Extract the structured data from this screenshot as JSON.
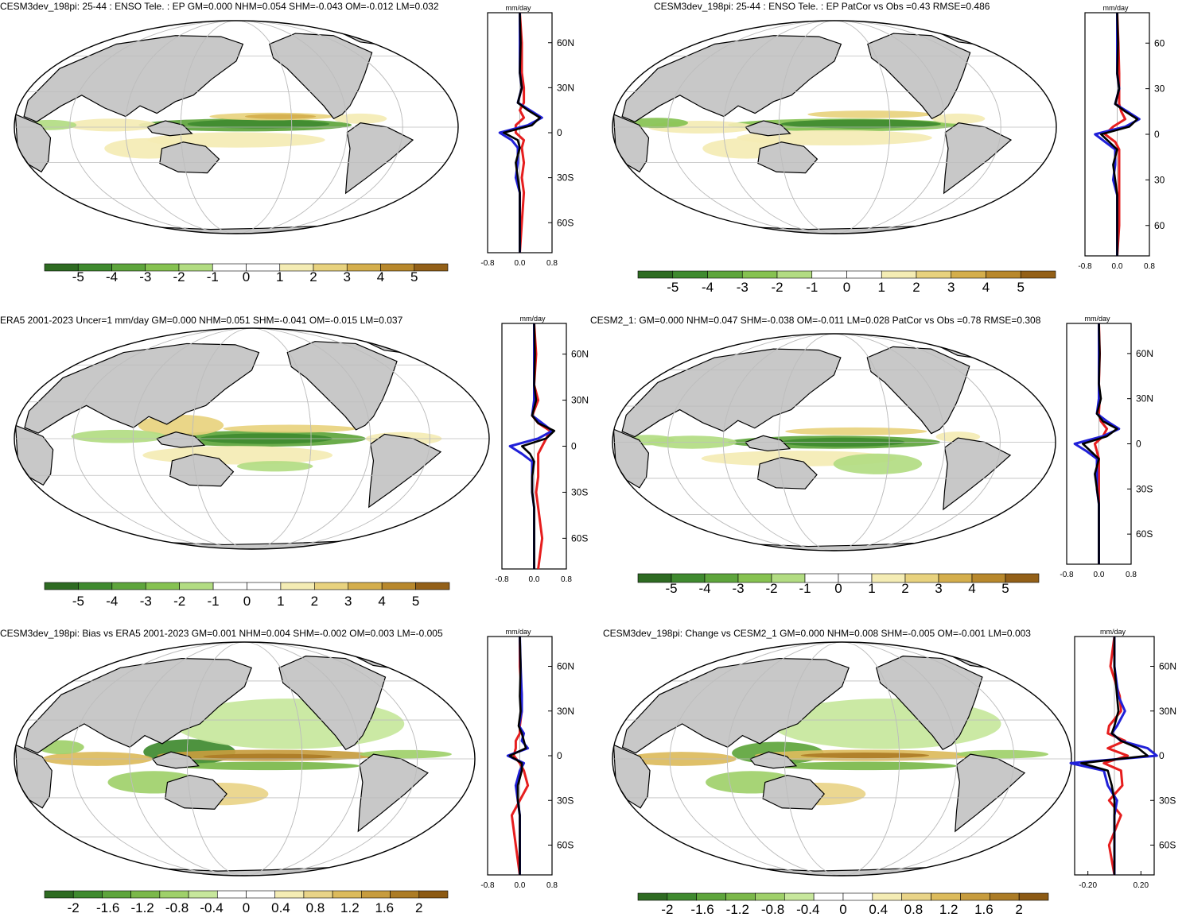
{
  "figure": {
    "colors": {
      "land": "#c8c8c8",
      "ocean": "#ffffff",
      "grid": "#bdbdbd",
      "profile_model": "#000000",
      "profile_obs": "#2020d8",
      "profile_alt": "#e61e1e"
    },
    "palette11": [
      "#2e6b22",
      "#3f8a2f",
      "#5ea53c",
      "#86c251",
      "#b2dc82",
      "#ffffff",
      "#f4ecb4",
      "#e8d27e",
      "#d4ae4c",
      "#b8882c",
      "#936018"
    ],
    "palette13": [
      "#2e6b22",
      "#3f8a2f",
      "#5ea53c",
      "#7bb84a",
      "#9fd06a",
      "#c7e79c",
      "#ffffff",
      "#f4ecb4",
      "#e9d488",
      "#dcbb5c",
      "#c79c3e",
      "#ac7c26",
      "#8c5a14"
    ]
  },
  "panels": [
    {
      "title": "CESM3dev_198pi: 25-44 : ENSO Tele. : EP GM=0.000 NHM=0.054 SHM=-0.043 OM=-0.012 LM=0.032",
      "units": "mm/day",
      "lat_ticks": [
        "60N",
        "30N",
        "0",
        "30S",
        "60S"
      ],
      "x_ticks": [
        "-0.8",
        "0.0",
        "0.8"
      ],
      "cbar_labels": [
        "-5",
        "-4",
        "-3",
        "-2",
        "-1",
        "0",
        "1",
        "2",
        "3",
        "4",
        "5"
      ]
    },
    {
      "title": "CESM3dev_198pi: 25-44 : ENSO Tele. : EP PatCor vs Obs =0.43 RMSE=0.486",
      "units": "mm/day",
      "lat_ticks": [
        "60",
        "30",
        "0",
        "30",
        "60"
      ],
      "x_ticks": [
        "-0.8",
        "0.0",
        "0.8"
      ],
      "cbar_labels": [
        "-5",
        "-4",
        "-3",
        "-2",
        "-1",
        "0",
        "1",
        "2",
        "3",
        "4",
        "5"
      ]
    },
    {
      "title": "ERA5 2001-2023 Uncer=1 mm/day GM=0.000 NHM=0.051 SHM=-0.041 OM=-0.015 LM=0.037",
      "units": "mm/day",
      "lat_ticks": [
        "60N",
        "30N",
        "0",
        "30S",
        "60S"
      ],
      "x_ticks": [
        "-0.8",
        "0.0",
        "0.8"
      ],
      "cbar_labels": [
        "-5",
        "-4",
        "-3",
        "-2",
        "-1",
        "0",
        "1",
        "2",
        "3",
        "4",
        "5"
      ]
    },
    {
      "title": "CESM2_1: GM=0.000 NHM=0.047 SHM=-0.038 OM=-0.011 LM=0.028 PatCor vs Obs =0.78 RMSE=0.308",
      "units": "mm/day",
      "lat_ticks": [
        "60N",
        "30N",
        "0",
        "30S",
        "60S"
      ],
      "x_ticks": [
        "-0.8",
        "0.0",
        "0.8"
      ],
      "cbar_labels": [
        "-5",
        "-4",
        "-3",
        "-2",
        "-1",
        "0",
        "1",
        "2",
        "3",
        "4",
        "5"
      ]
    },
    {
      "title": "CESM3dev_198pi: Bias vs ERA5 2001-2023 GM=0.001 NHM=0.004 SHM=-0.002 OM=0.003 LM=-0.005",
      "units": "mm/day",
      "lat_ticks": [
        "60N",
        "30N",
        "0",
        "30S",
        "60S"
      ],
      "x_ticks": [
        "-0.8",
        "0.0",
        "0.8"
      ],
      "cbar_labels": [
        "-2",
        "-1.6",
        "-1.2",
        "-0.8",
        "-0.4",
        "0",
        "0.4",
        "0.8",
        "1.2",
        "1.6",
        "2"
      ]
    },
    {
      "title": "CESM3dev_198pi: Change vs CESM2_1 GM=0.000 NHM=0.008 SHM=-0.005 OM=-0.001 LM=0.003",
      "units": "mm/day",
      "lat_ticks": [
        "60N",
        "30N",
        "0",
        "30S",
        "60S"
      ],
      "x_ticks": [
        "-0.20",
        "0.20"
      ],
      "cbar_labels": [
        "-2",
        "-1.6",
        "-1.2",
        "-0.8",
        "-0.4",
        "0",
        "0.4",
        "0.8",
        "1.2",
        "1.6",
        "2"
      ]
    }
  ],
  "chart_data": [
    {
      "type": "heatmap",
      "title": "CESM3dev_198pi: 25-44 : ENSO Tele. : EP GM=0.000 NHM=0.054 SHM=-0.043 OM=-0.012 LM=0.032",
      "colorbar": {
        "min": -5,
        "max": 5,
        "step": 1,
        "bins": 11
      },
      "zonal_profile": {
        "type": "line",
        "xlabel": "mm/day",
        "xlim": [
          -0.8,
          0.8
        ],
        "lat": [
          80,
          60,
          40,
          30,
          20,
          15,
          10,
          5,
          0,
          -5,
          -10,
          -20,
          -30,
          -40,
          -60,
          -80
        ],
        "series": [
          {
            "name": "model",
            "values": [
              0.0,
              0.02,
              0.0,
              0.05,
              -0.05,
              0.2,
              0.5,
              0.3,
              -0.4,
              -0.05,
              0.0,
              -0.1,
              -0.05,
              0.0,
              0.0,
              0.0
            ]
          },
          {
            "name": "obs",
            "values": [
              0.0,
              0.0,
              0.0,
              0.05,
              -0.05,
              0.25,
              0.55,
              0.2,
              -0.5,
              -0.2,
              -0.05,
              -0.05,
              -0.1,
              0.0,
              0.0,
              0.0
            ]
          },
          {
            "name": "alt",
            "values": [
              0.0,
              0.05,
              0.05,
              0.1,
              0.1,
              0.0,
              0.1,
              -0.1,
              -0.1,
              0.1,
              0.05,
              0.1,
              0.05,
              0.1,
              0.05,
              0.0
            ]
          }
        ]
      }
    },
    {
      "type": "heatmap",
      "title": "CESM3dev_198pi: 25-44 : ENSO Tele. : EP PatCor vs Obs =0.43 RMSE=0.486",
      "colorbar": {
        "min": -5,
        "max": 5,
        "step": 1,
        "bins": 11
      },
      "zonal_profile": {
        "type": "line",
        "xlabel": "mm/day",
        "xlim": [
          -0.8,
          0.8
        ],
        "lat": [
          80,
          60,
          40,
          30,
          20,
          15,
          10,
          5,
          0,
          -5,
          -10,
          -20,
          -30,
          -40,
          -60,
          -80
        ],
        "series": [
          {
            "name": "model",
            "values": [
              0.0,
              0.02,
              0.0,
              0.05,
              -0.05,
              0.2,
              0.5,
              0.3,
              -0.4,
              -0.2,
              0.0,
              -0.1,
              -0.05,
              0.0,
              0.0,
              0.0
            ]
          },
          {
            "name": "obs",
            "values": [
              0.0,
              0.0,
              0.0,
              0.05,
              -0.05,
              0.25,
              0.55,
              0.2,
              -0.55,
              -0.3,
              -0.05,
              -0.05,
              -0.1,
              0.0,
              0.0,
              0.0
            ]
          },
          {
            "name": "alt",
            "values": [
              0.0,
              0.03,
              0.05,
              0.05,
              0.05,
              0.1,
              0.2,
              -0.1,
              -0.3,
              -0.05,
              0.05,
              0.05,
              0.05,
              0.05,
              0.05,
              0.0
            ]
          }
        ]
      }
    },
    {
      "type": "heatmap",
      "title": "ERA5 2001-2023 Uncer=1 mm/day GM=0.000 NHM=0.051 SHM=-0.041 OM=-0.015 LM=0.037",
      "colorbar": {
        "min": -5,
        "max": 5,
        "step": 1,
        "bins": 11
      },
      "zonal_profile": {
        "type": "line",
        "xlabel": "mm/day",
        "xlim": [
          -0.8,
          0.8
        ],
        "lat": [
          80,
          60,
          40,
          30,
          20,
          15,
          10,
          5,
          0,
          -5,
          -10,
          -20,
          -30,
          -40,
          -60,
          -80
        ],
        "series": [
          {
            "name": "model",
            "values": [
              0.0,
              0.02,
              0.0,
              0.05,
              -0.05,
              0.1,
              0.5,
              0.3,
              -0.3,
              -0.1,
              0.0,
              -0.05,
              -0.05,
              0.0,
              0.0,
              0.0
            ]
          },
          {
            "name": "obs",
            "values": [
              0.0,
              0.0,
              0.0,
              0.0,
              -0.05,
              0.2,
              0.45,
              0.1,
              -0.6,
              -0.3,
              -0.05,
              -0.05,
              -0.05,
              0.0,
              0.0,
              0.0
            ]
          },
          {
            "name": "alt",
            "values": [
              0.0,
              0.05,
              0.0,
              0.1,
              -0.05,
              0.1,
              0.4,
              0.3,
              0.2,
              0.1,
              0.1,
              0.1,
              0.05,
              0.1,
              0.2,
              0.1
            ]
          }
        ]
      }
    },
    {
      "type": "heatmap",
      "title": "CESM2_1: GM=0.000 NHM=0.047 SHM=-0.038 OM=-0.011 LM=0.028 PatCor vs Obs =0.78 RMSE=0.308",
      "colorbar": {
        "min": -5,
        "max": 5,
        "step": 1,
        "bins": 11
      },
      "zonal_profile": {
        "type": "line",
        "xlabel": "mm/day",
        "xlim": [
          -0.8,
          0.8
        ],
        "lat": [
          80,
          60,
          40,
          30,
          20,
          15,
          10,
          5,
          0,
          -5,
          -10,
          -20,
          -30,
          -40,
          -60,
          -80
        ],
        "series": [
          {
            "name": "model",
            "values": [
              0.0,
              0.02,
              0.0,
              0.05,
              -0.05,
              0.1,
              0.45,
              0.2,
              -0.4,
              -0.2,
              0.0,
              -0.1,
              -0.05,
              0.0,
              0.0,
              0.0
            ]
          },
          {
            "name": "obs",
            "values": [
              0.0,
              0.0,
              0.0,
              0.0,
              -0.05,
              0.2,
              0.5,
              0.1,
              -0.6,
              -0.3,
              -0.05,
              -0.05,
              -0.05,
              0.0,
              0.0,
              0.0
            ]
          },
          {
            "name": "alt",
            "values": [
              0.0,
              0.02,
              0.0,
              0.02,
              0.0,
              0.05,
              0.2,
              0.1,
              -0.1,
              -0.05,
              0.0,
              0.0,
              0.0,
              0.0,
              0.0,
              0.0
            ]
          }
        ]
      }
    },
    {
      "type": "heatmap",
      "title": "CESM3dev_198pi: Bias vs ERA5 2001-2023 GM=0.001 NHM=0.004 SHM=-0.002 OM=0.003 LM=-0.005",
      "colorbar": {
        "min": -2,
        "max": 2,
        "step": 0.4,
        "bins": 13
      },
      "zonal_profile": {
        "type": "line",
        "xlabel": "mm/day",
        "xlim": [
          -0.8,
          0.8
        ],
        "lat": [
          80,
          60,
          40,
          30,
          20,
          15,
          10,
          5,
          0,
          -5,
          -10,
          -20,
          -30,
          -40,
          -60,
          -80
        ],
        "series": [
          {
            "name": "model",
            "values": [
              0.0,
              0.02,
              0.0,
              0.02,
              -0.03,
              0.05,
              0.1,
              0.15,
              -0.25,
              0.05,
              0.05,
              -0.05,
              -0.05,
              0.0,
              0.0,
              0.0
            ]
          },
          {
            "name": "obs",
            "values": [
              0.0,
              0.02,
              0.05,
              0.05,
              -0.02,
              0.1,
              0.05,
              0.2,
              -0.3,
              0.1,
              0.0,
              -0.1,
              -0.05,
              0.0,
              0.0,
              0.0
            ]
          },
          {
            "name": "alt",
            "values": [
              0.0,
              0.0,
              0.05,
              0.05,
              0.0,
              0.0,
              -0.1,
              -0.1,
              -0.15,
              0.0,
              0.1,
              0.2,
              0.0,
              -0.2,
              -0.1,
              0.0
            ]
          }
        ]
      }
    },
    {
      "type": "heatmap",
      "title": "CESM3dev_198pi: Change vs CESM2_1 GM=0.000 NHM=0.008 SHM=-0.005 OM=-0.001 LM=0.003",
      "colorbar": {
        "min": -2,
        "max": 2,
        "step": 0.4,
        "bins": 13
      },
      "zonal_profile": {
        "type": "line",
        "xlabel": "mm/day",
        "xlim": [
          -0.3,
          0.3
        ],
        "lat": [
          80,
          60,
          40,
          30,
          20,
          15,
          10,
          5,
          0,
          -5,
          -10,
          -20,
          -30,
          -40,
          -60,
          -80
        ],
        "series": [
          {
            "name": "model",
            "values": [
              0.0,
              0.0,
              0.02,
              0.03,
              0.0,
              -0.02,
              0.05,
              0.18,
              0.25,
              -0.25,
              -0.05,
              -0.02,
              0.0,
              0.0,
              0.0,
              0.0
            ]
          },
          {
            "name": "obs",
            "values": [
              0.0,
              0.0,
              0.03,
              0.08,
              0.02,
              -0.02,
              0.05,
              0.25,
              0.32,
              -0.33,
              -0.08,
              -0.05,
              0.02,
              0.0,
              0.0,
              0.0
            ]
          },
          {
            "name": "alt",
            "values": [
              0.0,
              -0.03,
              0.04,
              0.05,
              -0.04,
              -0.05,
              0.08,
              -0.05,
              0.1,
              -0.08,
              0.05,
              0.06,
              -0.04,
              0.05,
              -0.04,
              0.0
            ]
          }
        ]
      }
    }
  ]
}
